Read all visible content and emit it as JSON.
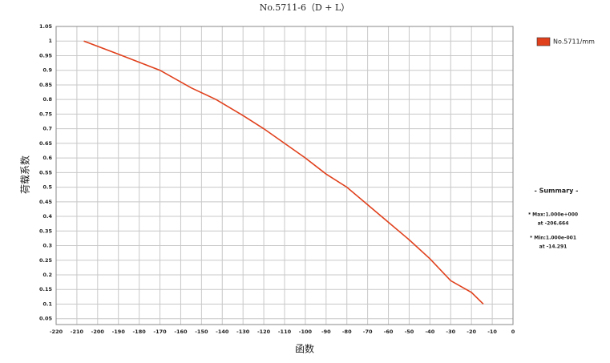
{
  "chart_data": {
    "type": "line",
    "title": "No.5711-6（D + L）",
    "x_label": "函数",
    "y_label": "荷载系数",
    "x": [
      -206.664,
      -190,
      -170,
      -155,
      -143,
      -130,
      -120,
      -110,
      -100,
      -90,
      -80,
      -70,
      -60,
      -50,
      -40,
      -30,
      -20,
      -14.291
    ],
    "series": [
      {
        "name": "No.5711/mm",
        "color": "#e0401c",
        "values": [
          1,
          0.955,
          0.9,
          0.84,
          0.8,
          0.745,
          0.7,
          0.65,
          0.6,
          0.545,
          0.5,
          0.44,
          0.38,
          0.32,
          0.255,
          0.18,
          0.14,
          0.1
        ]
      }
    ],
    "xlim": [
      -220,
      0
    ],
    "xticks": [
      -220,
      -210,
      -200,
      -190,
      -180,
      -170,
      -160,
      -150,
      -140,
      -130,
      -120,
      -110,
      -100,
      -90,
      -80,
      -70,
      -60,
      -50,
      -40,
      -30,
      -20,
      -10,
      0
    ],
    "ylim": [
      0.03,
      1.05
    ],
    "yticks": [
      1.05,
      1,
      0.95,
      0.9,
      0.85,
      0.8,
      0.75,
      0.7,
      0.65,
      0.6,
      0.55,
      0.5,
      0.45,
      0.4,
      0.35,
      0.3,
      0.25,
      0.2,
      0.15,
      0.1,
      0.05
    ],
    "grid": true,
    "legend": "top-right",
    "summary": {
      "title": "- Summary -",
      "lines": [
        "* Max:1.000e+000",
        "at -206.664",
        "* Min:1.000e-001",
        "at -14.291"
      ]
    }
  }
}
